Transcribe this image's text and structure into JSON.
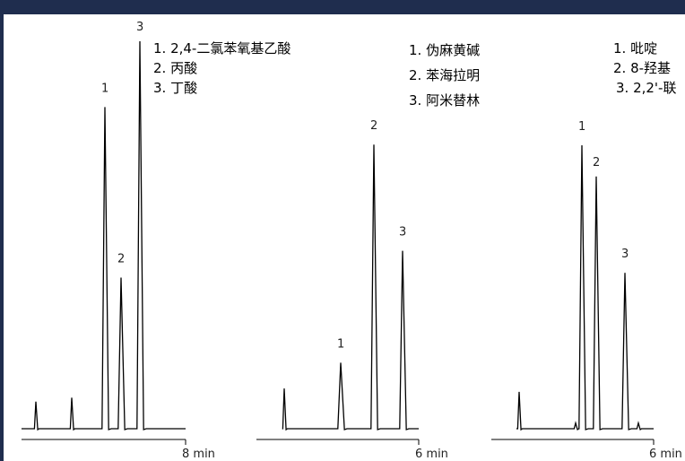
{
  "colors": {
    "frame": "#1f2d4e",
    "background": "#ffffff",
    "trace": "#000000"
  },
  "chart_data": [
    {
      "type": "line",
      "xlabel": "8 min",
      "peaks": [
        {
          "label": "1",
          "height": 0.83
        },
        {
          "label": "2",
          "height": 0.39
        },
        {
          "label": "3",
          "height": 1.0
        }
      ],
      "minor_peaks": [
        0.07,
        0.08
      ],
      "legend": [
        "1. 2,4-二氯苯氧基乙酸",
        "2. 丙酸",
        "3. 丁酸"
      ]
    },
    {
      "type": "line",
      "xlabel": "6 min",
      "peaks": [
        {
          "label": "1",
          "height": 0.23
        },
        {
          "label": "2",
          "height": 0.99
        },
        {
          "label": "3",
          "height": 0.62
        }
      ],
      "minor_peaks": [
        0.14
      ],
      "legend": [
        "1. 伪麻黄碱",
        "2. 苯海拉明",
        "3. 阿米替林"
      ]
    },
    {
      "type": "line",
      "xlabel": "6 min",
      "peaks": [
        {
          "label": "1",
          "height": 1.0
        },
        {
          "label": "2",
          "height": 0.89
        },
        {
          "label": "3",
          "height": 0.55
        }
      ],
      "minor_peaks": [
        0.13,
        0.02,
        0.02
      ],
      "legend": [
        "1. 吡啶",
        "2. 8-羟基",
        "3. 2,2'-联"
      ]
    }
  ]
}
